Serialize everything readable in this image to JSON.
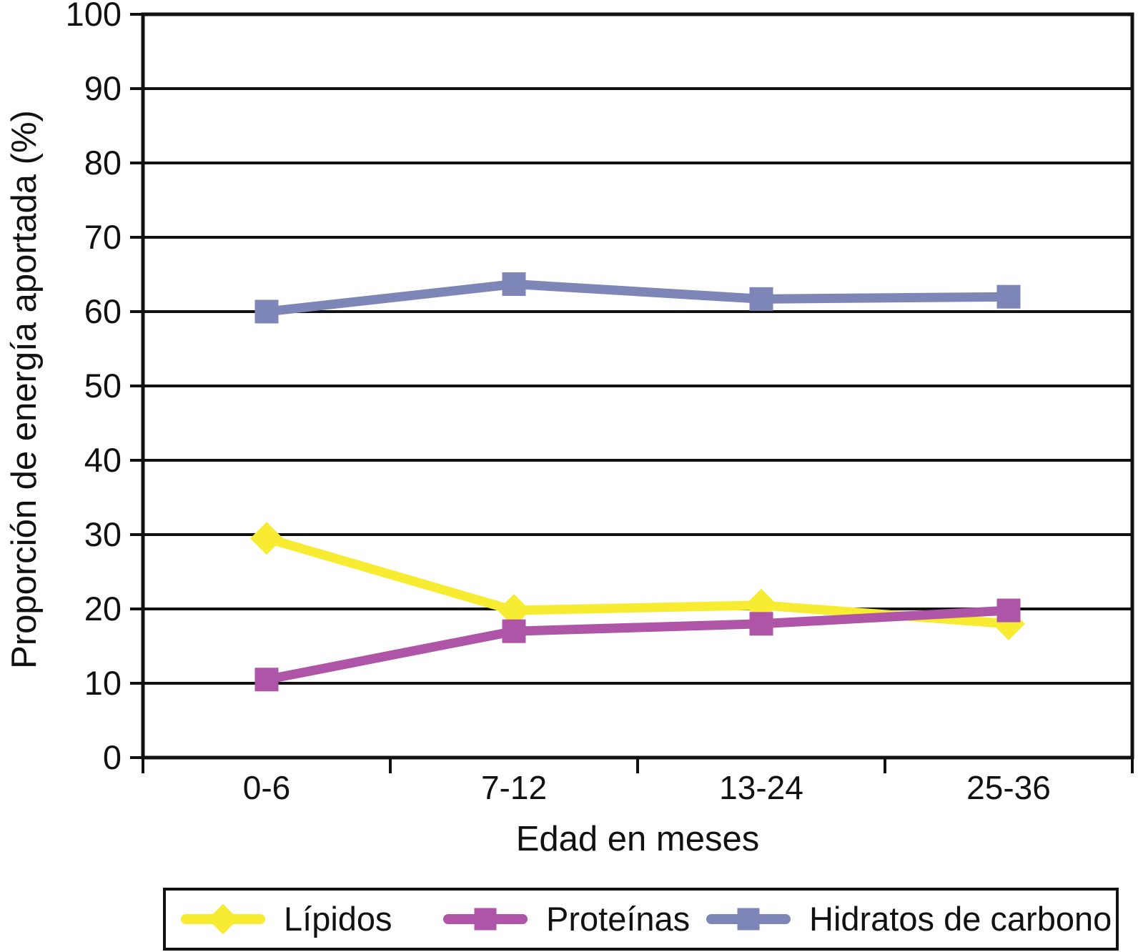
{
  "chart_data": {
    "type": "line",
    "title": "",
    "xlabel": "Edad en meses",
    "ylabel": "Proporción de energía aportada (%)",
    "categories": [
      "0-6",
      "7-12",
      "13-24",
      "25-36"
    ],
    "ylim": [
      0,
      100
    ],
    "yticks": [
      0,
      10,
      20,
      30,
      40,
      50,
      60,
      70,
      80,
      90,
      100
    ],
    "grid": "horizontal",
    "legend_position": "bottom",
    "axis_color": "#111111",
    "series": [
      {
        "name": "Lípidos",
        "color": "#F7EC31",
        "marker": "diamond",
        "values": [
          29.5,
          19.8,
          20.5,
          18
        ]
      },
      {
        "name": "Proteínas",
        "color": "#AF55A7",
        "marker": "square",
        "values": [
          10.5,
          17,
          18,
          19.8
        ]
      },
      {
        "name": "Hidratos de carbono",
        "color": "#7E86B8",
        "marker": "square",
        "values": [
          60,
          63.7,
          61.7,
          62
        ]
      }
    ]
  }
}
